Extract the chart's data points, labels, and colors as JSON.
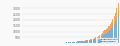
{
  "title": "",
  "years": [
    1944,
    1945,
    1946,
    1947,
    1948,
    1949,
    1950,
    1951,
    1952,
    1953,
    1954,
    1955,
    1956,
    1957,
    1958,
    1959,
    1960,
    1961,
    1962,
    1963,
    1964,
    1965,
    1966,
    1967,
    1968,
    1969,
    1970,
    1971,
    1972,
    1973,
    1974,
    1975,
    1976,
    1977,
    1978,
    1979,
    1980,
    1981,
    1982,
    1983,
    1984,
    1985,
    1986,
    1987,
    1988,
    1989,
    1990,
    1991,
    1992,
    1993,
    1994,
    1995,
    1996,
    1997,
    1998,
    1999,
    2000,
    2001,
    2002,
    2003,
    2004,
    2005,
    2006,
    2007,
    2008,
    2009,
    2010,
    2011,
    2012,
    2013,
    2014,
    2015,
    2016,
    2017
  ],
  "base_games": [
    2,
    1,
    2,
    1,
    3,
    2,
    4,
    3,
    3,
    4,
    5,
    6,
    7,
    8,
    9,
    8,
    10,
    9,
    11,
    12,
    14,
    16,
    18,
    17,
    20,
    22,
    28,
    30,
    35,
    38,
    45,
    50,
    55,
    60,
    65,
    72,
    85,
    90,
    100,
    110,
    120,
    135,
    140,
    155,
    160,
    170,
    190,
    200,
    215,
    230,
    250,
    270,
    290,
    310,
    330,
    360,
    400,
    430,
    480,
    530,
    600,
    680,
    750,
    820,
    900,
    950,
    1050,
    1150,
    1300,
    1450,
    1600,
    1800,
    2100,
    2400
  ],
  "expansions": [
    0,
    0,
    0,
    0,
    0,
    0,
    0,
    0,
    0,
    0,
    0,
    0,
    0,
    0,
    0,
    0,
    0,
    0,
    0,
    0,
    0,
    0,
    0,
    0,
    0,
    0,
    0,
    0,
    0,
    0,
    0,
    0,
    0,
    0,
    0,
    0,
    5,
    6,
    7,
    8,
    10,
    12,
    14,
    16,
    18,
    20,
    25,
    28,
    32,
    36,
    42,
    48,
    55,
    62,
    70,
    80,
    95,
    110,
    130,
    155,
    185,
    220,
    260,
    300,
    350,
    380,
    430,
    480,
    550,
    620,
    700,
    800,
    950,
    1100
  ],
  "bar_color_base": "#7bafd4",
  "bar_color_exp": "#f5a55a",
  "bg_color": "#f9f9f9",
  "ylim": [
    0,
    3600
  ],
  "ytick_vals": [
    500,
    1000,
    1500,
    2000,
    2500,
    3000
  ],
  "grid_color": "#dddddd",
  "legend_labels": [
    "Expansion sets",
    "Board games"
  ],
  "legend_colors": [
    "#f5a55a",
    "#7bafd4"
  ]
}
